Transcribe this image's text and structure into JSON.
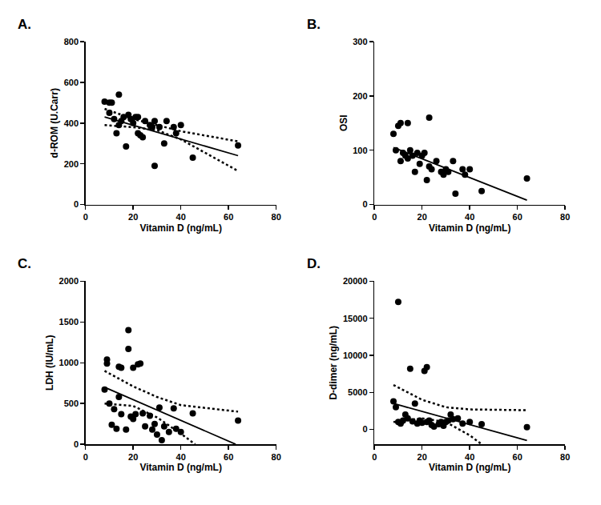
{
  "chart_data": [
    {
      "type": "scatter",
      "title": "A.",
      "x_label": "Vitamin D (ng/mL)",
      "y_label": "d-ROM (U.Carr)",
      "xlim": [
        0,
        80
      ],
      "xticks": [
        0,
        20,
        40,
        60,
        80
      ],
      "ylim": [
        0,
        800
      ],
      "yticks": [
        0,
        200,
        400,
        600,
        800
      ],
      "grid": false,
      "series": [
        {
          "type": "scatter",
          "marker": "circle",
          "color": "#000000",
          "x": [
            8,
            10,
            10,
            11,
            12,
            13,
            14,
            14,
            15,
            16,
            17,
            18,
            19,
            20,
            21,
            22,
            22,
            23,
            24,
            25,
            27,
            28,
            29,
            29,
            31,
            33,
            34,
            37,
            38,
            40,
            45,
            64
          ],
          "values": [
            505,
            500,
            450,
            500,
            420,
            350,
            540,
            390,
            410,
            430,
            285,
            440,
            420,
            400,
            430,
            430,
            350,
            340,
            330,
            410,
            390,
            380,
            190,
            410,
            380,
            300,
            410,
            380,
            350,
            390,
            230,
            290
          ]
        },
        {
          "type": "line",
          "line_style": "solid",
          "color": "#000000",
          "x": [
            8,
            64
          ],
          "values": [
            430,
            240
          ]
        },
        {
          "type": "line",
          "line_style": "dotted",
          "color": "#000000",
          "x": [
            8,
            20,
            30,
            40,
            64
          ],
          "values": [
            470,
            420,
            390,
            360,
            310
          ]
        },
        {
          "type": "line",
          "line_style": "dotted",
          "color": "#000000",
          "x": [
            8,
            20,
            30,
            40,
            64
          ],
          "values": [
            390,
            380,
            365,
            320,
            165
          ]
        }
      ]
    },
    {
      "type": "scatter",
      "title": "B.",
      "x_label": "Vitamin D (ng/mL)",
      "y_label": "OSI",
      "xlim": [
        0,
        80
      ],
      "xticks": [
        0,
        20,
        40,
        60,
        80
      ],
      "ylim": [
        0,
        300
      ],
      "yticks": [
        0,
        100,
        200,
        300
      ],
      "grid": false,
      "series": [
        {
          "type": "scatter",
          "marker": "circle",
          "color": "#000000",
          "x": [
            8,
            9,
            10,
            11,
            11,
            12,
            13,
            14,
            14,
            15,
            16,
            17,
            18,
            19,
            20,
            21,
            22,
            23,
            23,
            24,
            26,
            28,
            29,
            30,
            31,
            33,
            34,
            37,
            38,
            40,
            45,
            64
          ],
          "values": [
            130,
            100,
            145,
            150,
            80,
            95,
            90,
            150,
            85,
            100,
            90,
            60,
            95,
            75,
            90,
            95,
            45,
            160,
            70,
            65,
            80,
            60,
            55,
            65,
            60,
            80,
            20,
            65,
            55,
            65,
            25,
            48
          ]
        },
        {
          "type": "line",
          "line_style": "solid",
          "color": "#000000",
          "x": [
            8,
            64
          ],
          "values": [
            105,
            8
          ]
        }
      ]
    },
    {
      "type": "scatter",
      "title": "C.",
      "x_label": "Vitamin D (ng/mL)",
      "y_label": "LDH (IU/mL)",
      "xlim": [
        0,
        80
      ],
      "xticks": [
        0,
        20,
        40,
        60,
        80
      ],
      "ylim": [
        0,
        2000
      ],
      "yticks": [
        0,
        500,
        1000,
        1500,
        2000
      ],
      "grid": false,
      "series": [
        {
          "type": "scatter",
          "marker": "circle",
          "color": "#000000",
          "x": [
            8,
            9,
            9,
            10,
            11,
            12,
            13,
            14,
            14,
            15,
            15,
            17,
            18,
            18,
            19,
            20,
            20,
            21,
            22,
            23,
            24,
            25,
            27,
            28,
            29,
            30,
            31,
            32,
            33,
            35,
            37,
            38,
            40,
            45,
            64
          ],
          "values": [
            670,
            1040,
            990,
            500,
            240,
            430,
            190,
            950,
            580,
            940,
            370,
            180,
            1170,
            1400,
            340,
            940,
            310,
            370,
            980,
            990,
            380,
            220,
            350,
            180,
            250,
            120,
            450,
            50,
            220,
            150,
            440,
            190,
            150,
            380,
            290
          ]
        },
        {
          "type": "line",
          "line_style": "solid",
          "color": "#000000",
          "x": [
            8,
            63
          ],
          "values": [
            700,
            0
          ]
        },
        {
          "type": "line",
          "line_style": "dotted",
          "color": "#000000",
          "x": [
            8,
            20,
            30,
            40,
            64
          ],
          "values": [
            900,
            710,
            580,
            480,
            400
          ]
        },
        {
          "type": "line",
          "line_style": "dotted",
          "color": "#000000",
          "x": [
            8,
            20,
            30,
            40,
            46
          ],
          "values": [
            500,
            470,
            330,
            130,
            0
          ]
        }
      ]
    },
    {
      "type": "scatter",
      "title": "D.",
      "x_label": "Vitamin D (ng/mL)",
      "y_label": "D-dimer (ng/mL)",
      "xlim": [
        0,
        80
      ],
      "xticks": [
        0,
        20,
        40,
        60,
        80
      ],
      "ylim": [
        -2000,
        20000
      ],
      "yticks": [
        0,
        5000,
        10000,
        15000,
        20000
      ],
      "grid": false,
      "series": [
        {
          "type": "scatter",
          "marker": "circle",
          "color": "#000000",
          "x": [
            8,
            9,
            10,
            10,
            11,
            12,
            13,
            14,
            15,
            16,
            17,
            18,
            19,
            20,
            21,
            22,
            22,
            23,
            24,
            25,
            27,
            28,
            29,
            30,
            31,
            32,
            33,
            35,
            37,
            40,
            45,
            64
          ],
          "values": [
            3800,
            3000,
            17200,
            1000,
            800,
            1200,
            2000,
            1500,
            8200,
            1100,
            3500,
            800,
            1200,
            900,
            7900,
            8400,
            1000,
            1200,
            600,
            400,
            700,
            1000,
            500,
            1000,
            1200,
            2000,
            1400,
            1500,
            800,
            1000,
            700,
            300
          ]
        },
        {
          "type": "line",
          "line_style": "solid",
          "color": "#000000",
          "x": [
            8,
            64
          ],
          "values": [
            3500,
            -1500
          ]
        },
        {
          "type": "line",
          "line_style": "dotted",
          "color": "#000000",
          "x": [
            8,
            20,
            30,
            40,
            64
          ],
          "values": [
            6000,
            4000,
            3000,
            2700,
            2600
          ]
        },
        {
          "type": "line",
          "line_style": "dotted",
          "color": "#000000",
          "x": [
            8,
            20,
            30,
            40,
            45
          ],
          "values": [
            1000,
            1500,
            1000,
            -800,
            -2000
          ]
        }
      ]
    }
  ]
}
